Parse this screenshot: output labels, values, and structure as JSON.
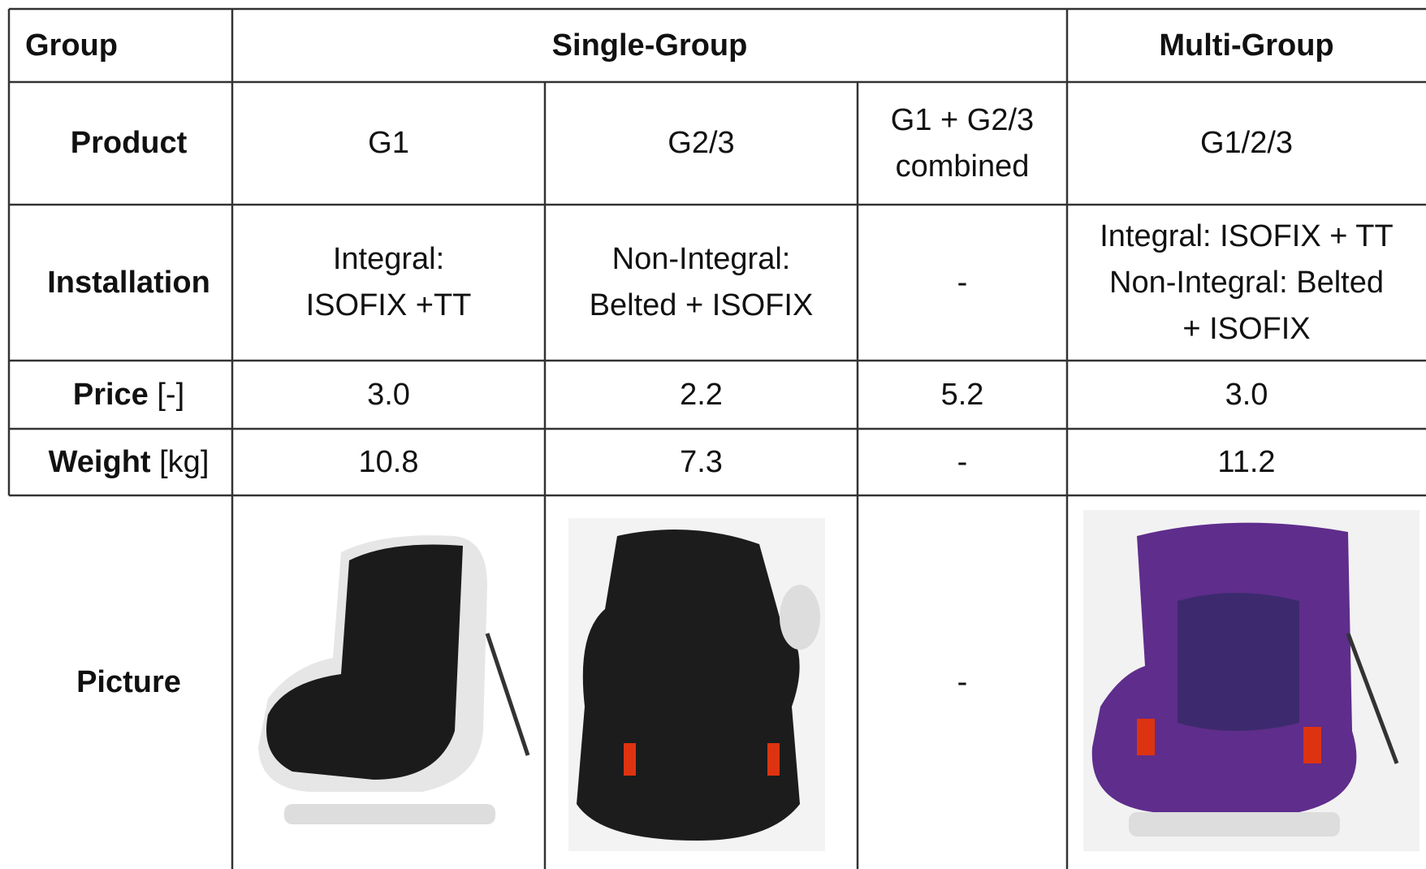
{
  "table": {
    "header": {
      "label": "Group",
      "single": "Single-Group",
      "multi": "Multi-Group"
    },
    "product": {
      "label": "Product",
      "cells": [
        [
          "G1"
        ],
        [
          "G2/3"
        ],
        [
          "G1 + G2/3",
          "combined"
        ],
        [
          "G1/2/3"
        ]
      ]
    },
    "installation": {
      "label": "Installation",
      "cells": [
        [
          "Integral:",
          "ISOFIX +TT"
        ],
        [
          "Non-Integral:",
          "Belted + ISOFIX"
        ],
        [
          "-"
        ],
        [
          "Integral: ISOFIX + TT",
          "Non-Integral: Belted",
          "+ ISOFIX"
        ]
      ]
    },
    "price": {
      "label": "Price",
      "unit": "[-]",
      "cells": [
        "3.0",
        "2.2",
        "5.2",
        "3.0"
      ]
    },
    "weight": {
      "label": "Weight",
      "unit": "[kg]",
      "cells": [
        "10.8",
        "7.3",
        "-",
        "11.2"
      ]
    },
    "picture": {
      "label": "Picture",
      "cells": [
        "-"
      ]
    }
  }
}
